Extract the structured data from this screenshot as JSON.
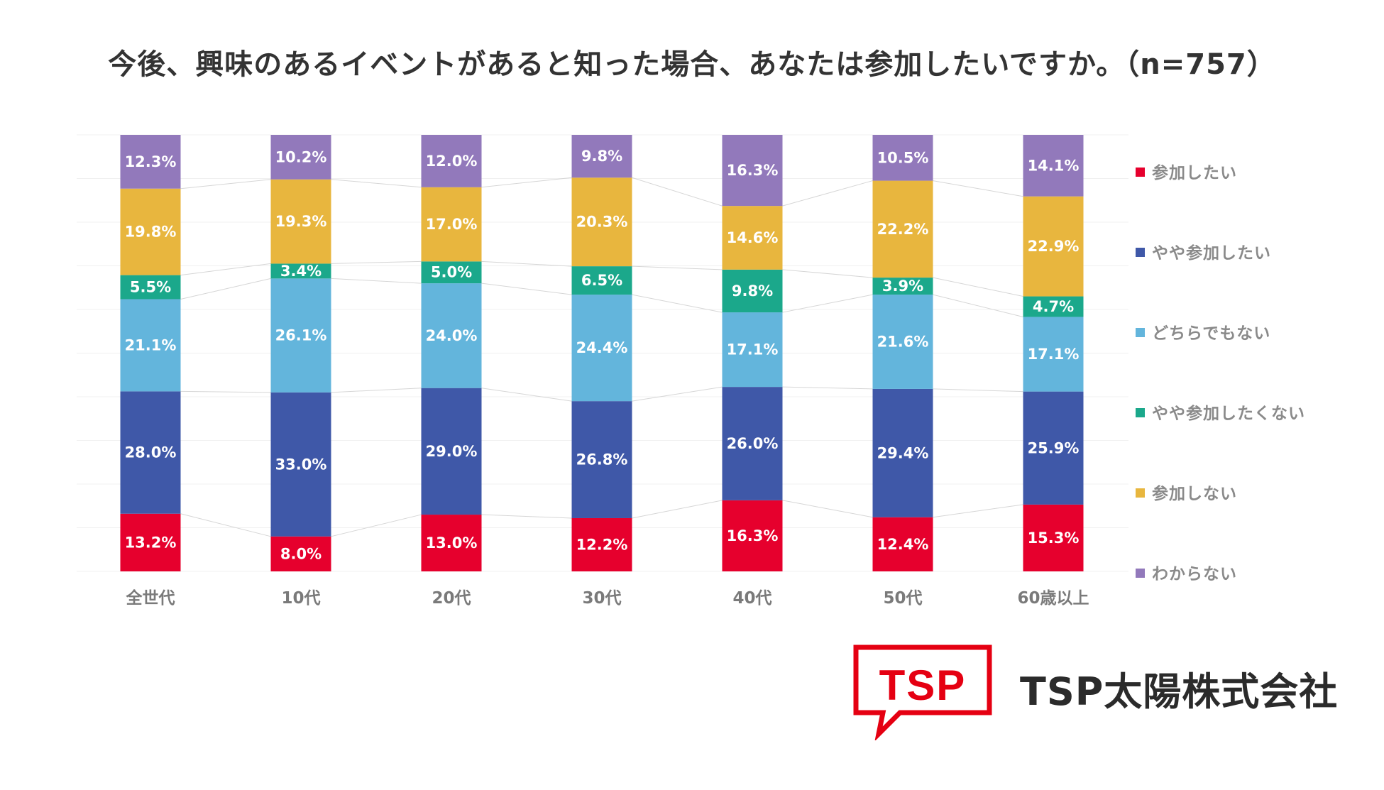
{
  "colors": {
    "sanka_shitai": "#e6002d",
    "yaya_sanka_shitai": "#3f58a8",
    "dochira_demo_nai": "#63b5dc",
    "yaya_sanka_shitakunai": "#1ba88b",
    "sanka_shinai": "#e8b63e",
    "wakaranai": "#9279bb",
    "brand": "#e50012"
  },
  "chart_data": {
    "type": "bar",
    "stacked": true,
    "title": "今後、興味のあるイベントがあると知った場合、あなたは参加したいですか。（n=757）",
    "categories": [
      "全世代",
      "10代",
      "20代",
      "30代",
      "40代",
      "50代",
      "60歳以上"
    ],
    "series": [
      {
        "name": "参加したい",
        "color": "#e6002d",
        "values": [
          13.2,
          8.0,
          13.0,
          12.2,
          16.3,
          12.4,
          15.3
        ]
      },
      {
        "name": "やや参加したい",
        "color": "#3f58a8",
        "values": [
          28.0,
          33.0,
          29.0,
          26.8,
          26.0,
          29.4,
          25.9
        ]
      },
      {
        "name": "どちらでもない",
        "color": "#63b5dc",
        "values": [
          21.1,
          26.1,
          24.0,
          24.4,
          17.1,
          21.6,
          17.1
        ]
      },
      {
        "name": "やや参加したくない",
        "color": "#1ba88b",
        "values": [
          5.5,
          3.4,
          5.0,
          6.5,
          9.8,
          3.9,
          4.7
        ]
      },
      {
        "name": "参加しない",
        "color": "#e8b63e",
        "values": [
          19.8,
          19.3,
          17.0,
          20.3,
          14.6,
          22.2,
          22.9
        ]
      },
      {
        "name": "わからない",
        "color": "#9279bb",
        "values": [
          12.3,
          10.2,
          12.0,
          9.8,
          16.3,
          10.5,
          14.1
        ]
      }
    ],
    "ylim": [
      0,
      100
    ],
    "legend": "right",
    "grid": true,
    "value_format": "%"
  },
  "logo": {
    "mark": "TSP"
  },
  "company_name": "TSP太陽株式会社"
}
